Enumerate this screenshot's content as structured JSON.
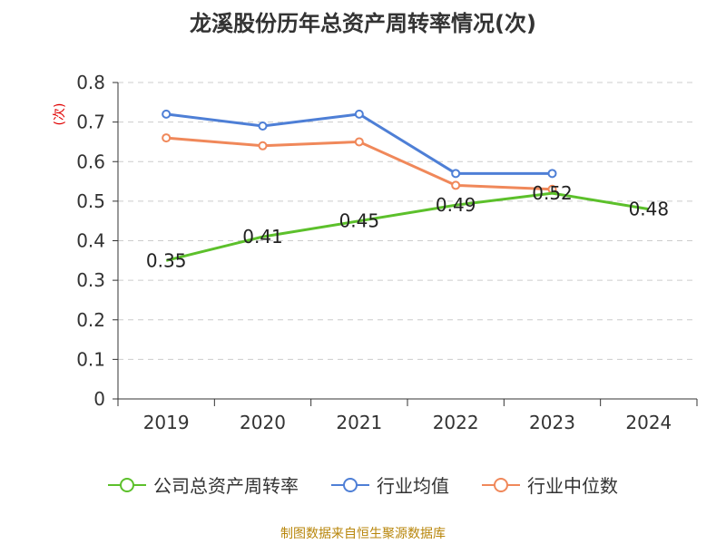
{
  "chart_data": {
    "type": "line",
    "title": "龙溪股份历年总资产周转率情况(次)",
    "ylabel": "(次)",
    "ylim": [
      0,
      0.8
    ],
    "yticks": [
      "0",
      "0.1",
      "0.2",
      "0.3",
      "0.4",
      "0.5",
      "0.6",
      "0.7",
      "0.8"
    ],
    "categories": [
      "2019",
      "2020",
      "2021",
      "2022",
      "2023",
      "2024"
    ],
    "grid": true,
    "legend_position": "bottom",
    "series": [
      {
        "name": "公司总资产周转率",
        "color": "#5cc02b",
        "values": [
          0.35,
          0.41,
          0.45,
          0.49,
          0.52,
          0.48
        ],
        "labels": [
          "0.35",
          "0.41",
          "0.45",
          "0.49",
          "0.52",
          "0.48"
        ]
      },
      {
        "name": "行业均值",
        "color": "#4e7fd6",
        "values": [
          0.72,
          0.69,
          0.72,
          0.57,
          0.57,
          null
        ]
      },
      {
        "name": "行业中位数",
        "color": "#f0885a",
        "values": [
          0.66,
          0.64,
          0.65,
          0.54,
          0.53,
          null
        ]
      }
    ]
  },
  "source": "制图数据来自恒生聚源数据库"
}
